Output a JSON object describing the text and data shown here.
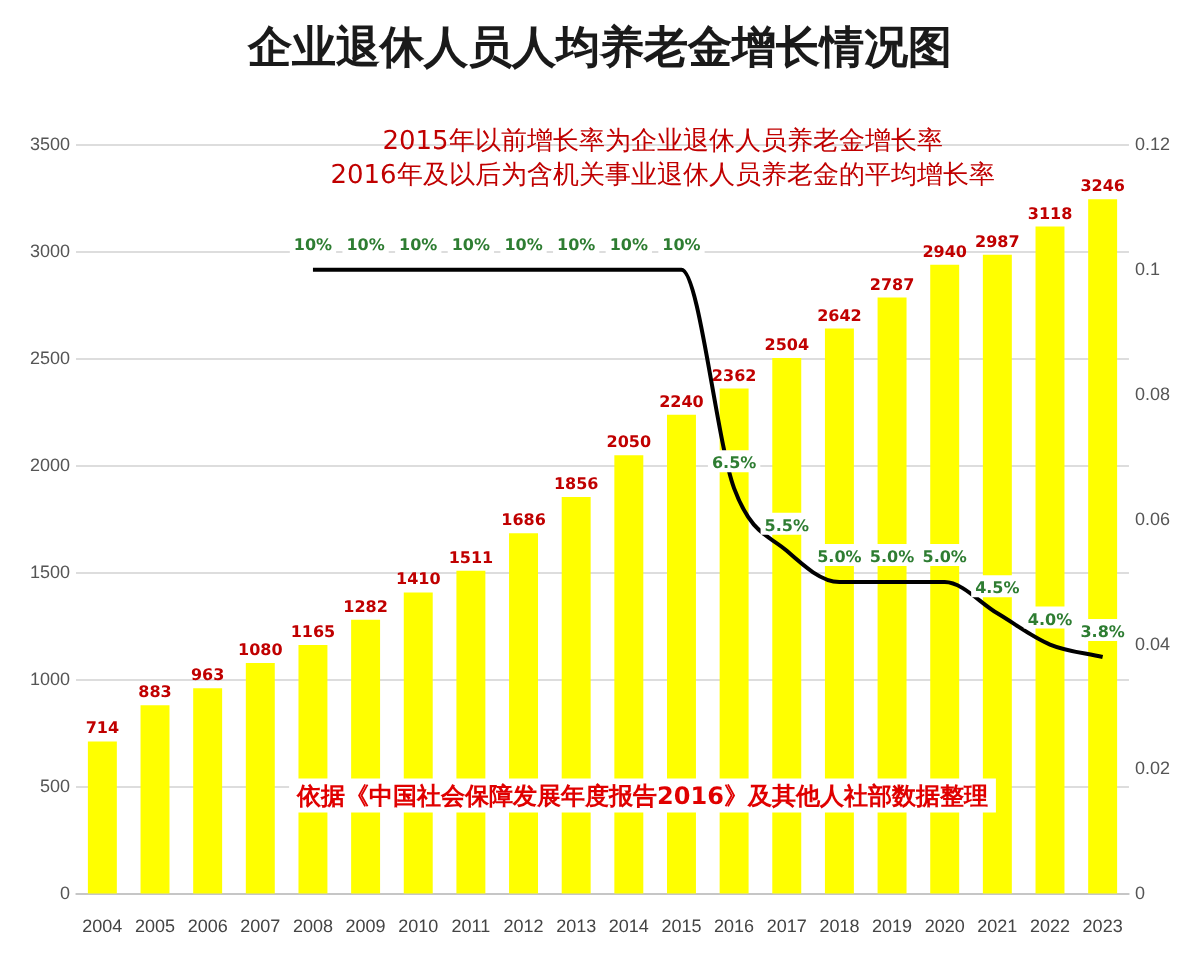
{
  "chart_data": {
    "type": "bar",
    "title": "企业退休人员人均养老金增长情况图",
    "categories": [
      "2004",
      "2005",
      "2006",
      "2007",
      "2008",
      "2009",
      "2010",
      "2011",
      "2012",
      "2013",
      "2014",
      "2015",
      "2016",
      "2017",
      "2018",
      "2019",
      "2020",
      "2021",
      "2022",
      "2023"
    ],
    "series": [
      {
        "color": "#ffff00",
        "values": [
          714,
          883,
          963,
          1080,
          1165,
          1282,
          1410,
          1511,
          1686,
          1856,
          2050,
          2240,
          2362,
          2504,
          2642,
          2787,
          2940,
          2987,
          3118,
          3246
        ],
        "value_labels": [
          "714",
          "883",
          "963",
          "1080",
          "1165",
          "1282",
          "1410",
          "1511",
          "1686",
          "1856",
          "2050",
          "2240",
          "2362",
          "2504",
          "2642",
          "2787",
          "2940",
          "2987",
          "3118",
          "3246"
        ]
      },
      {
        "type": "line",
        "axis": "y2",
        "color": "#000000",
        "values": [
          null,
          null,
          null,
          null,
          0.1,
          0.1,
          0.1,
          0.1,
          0.1,
          0.1,
          0.1,
          0.1,
          0.065,
          0.055,
          0.05,
          0.05,
          0.05,
          0.045,
          0.04,
          0.038
        ],
        "value_labels": [
          null,
          null,
          null,
          null,
          "10%",
          "10%",
          "10%",
          "10%",
          "10%",
          "10%",
          "10%",
          "10%",
          "6.5%",
          "5.5%",
          "5.0%",
          "5.0%",
          "5.0%",
          "4.5%",
          "4.0%",
          "3.8%"
        ]
      }
    ],
    "ylim": [
      0,
      3500
    ],
    "yticks": [
      0,
      500,
      1000,
      1500,
      2000,
      2500,
      3000,
      3500
    ],
    "y2lim": [
      0,
      0.12
    ],
    "y2ticks": [
      0,
      0.02,
      0.04,
      0.06,
      0.08,
      0.1,
      0.12
    ],
    "grid": "y",
    "legend": false,
    "marker": "none",
    "annotations": [
      "2015年以前增长率为企业退休人员养老金增长率",
      "2016年及以后为含机关事业退休人员养老金的平均增长率",
      "依据《中国社会保障发展年度报告2016》及其他人社部数据整理"
    ]
  }
}
